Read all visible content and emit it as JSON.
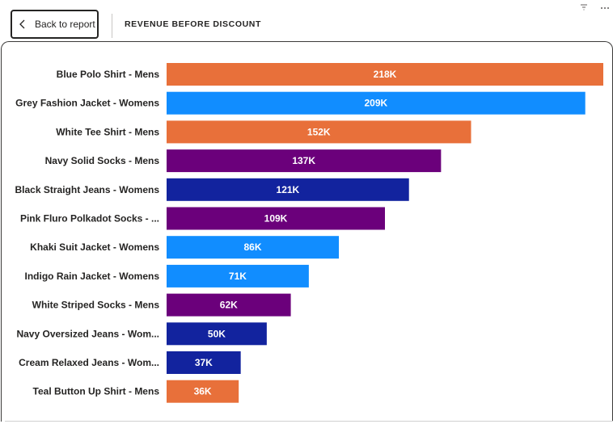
{
  "header": {
    "back_label": "Back to report",
    "title": "REVENUE BEFORE DISCOUNT",
    "icons": [
      "chevron-left-icon",
      "filter-icon",
      "more-options-icon"
    ]
  },
  "colors": {
    "orange": "#E8703A",
    "light_blue": "#118DFF",
    "purple": "#6B007B",
    "dark_blue": "#12239E",
    "label_text": "#252423"
  },
  "chart_data": {
    "type": "bar",
    "orientation": "horizontal",
    "title": "",
    "xlabel": "",
    "ylabel": "",
    "xlim": [
      0,
      218
    ],
    "grid": false,
    "legend": "none",
    "categories": [
      "Blue Polo Shirt - Mens",
      "Grey Fashion Jacket - Womens",
      "White Tee Shirt - Mens",
      "Navy Solid Socks - Mens",
      "Black Straight Jeans - Womens",
      "Pink Fluro Polkadot Socks - ...",
      "Khaki Suit Jacket - Womens",
      "Indigo Rain Jacket - Womens",
      "White Striped Socks - Mens",
      "Navy Oversized Jeans - Wom...",
      "Cream Relaxed Jeans - Wom...",
      "Teal Button Up Shirt - Mens"
    ],
    "values": [
      218,
      209,
      152,
      137,
      121,
      109,
      86,
      71,
      62,
      50,
      37,
      36
    ],
    "data_labels": [
      "218K",
      "209K",
      "152K",
      "137K",
      "121K",
      "109K",
      "86K",
      "71K",
      "62K",
      "50K",
      "37K",
      "36K"
    ],
    "bar_colors": [
      "#E8703A",
      "#118DFF",
      "#E8703A",
      "#6B007B",
      "#12239E",
      "#6B007B",
      "#118DFF",
      "#118DFF",
      "#6B007B",
      "#12239E",
      "#12239E",
      "#E8703A"
    ],
    "unit": "K"
  }
}
